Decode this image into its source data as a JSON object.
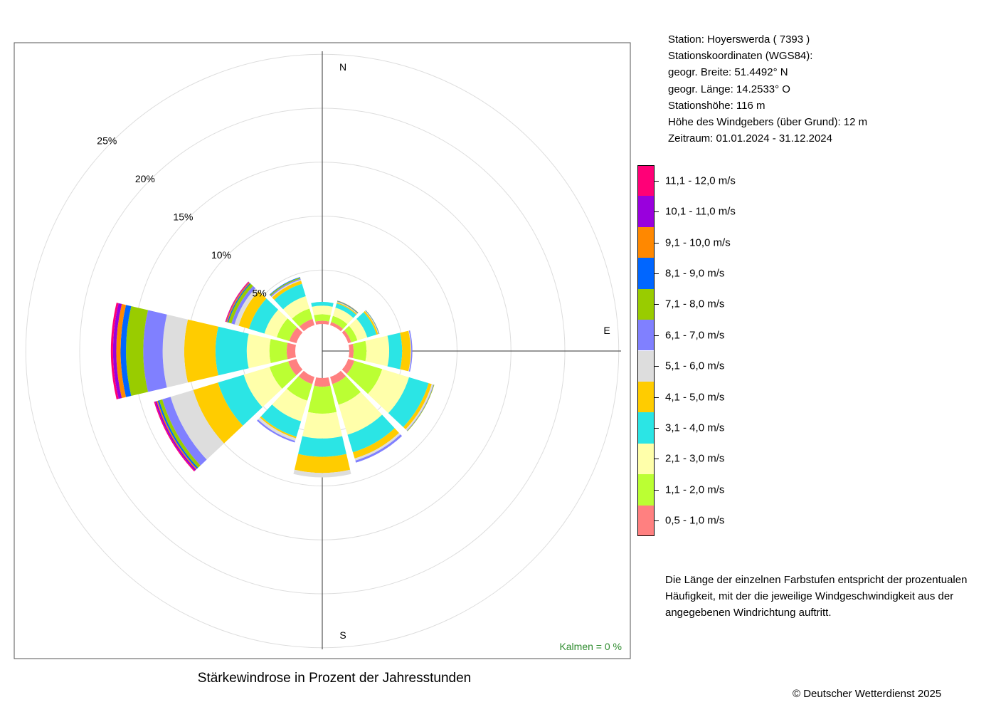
{
  "station": {
    "line": "Station:  Hoyerswerda  ( 7393 )",
    "coords_heading": "Stationskoordinaten (WGS84):",
    "lat": "geogr. Breite: 51.4492° N",
    "lon": "geogr. Länge: 14.2533° O",
    "elevation": "Stationshöhe: 116 m",
    "sensor_height": "Höhe des Windgebers (über Grund): 12 m",
    "period": "Zeitraum: 01.01.2024 - 31.12.2024"
  },
  "note": "Die Länge der einzelnen Farbstufen entspricht der prozentualen Häufigkeit, mit der die jeweilige Windgeschwindigkeit aus der angegebenen Windrichtung auftritt.",
  "caption": "Stärkewindrose in Prozent der Jahresstunden",
  "copyright": "© Deutscher Wetterdienst  2025",
  "calm_text": "Kalmen  =  0 %",
  "compass": {
    "n": "N",
    "e": "E",
    "s": "S"
  },
  "chart_data": {
    "type": "windrose",
    "title": "Stärkewindrose in Prozent der Jahresstunden",
    "unit": "%",
    "directions_deg": [
      0,
      30,
      60,
      90,
      120,
      150,
      180,
      210,
      240,
      270,
      300,
      330
    ],
    "ring_values": [
      5,
      10,
      15,
      20,
      25
    ],
    "ring_labels": [
      "5%",
      "10%",
      "15%",
      "20%",
      "25%"
    ],
    "rlim": [
      0,
      25
    ],
    "calm_percent": 0,
    "legend_position": "right",
    "classes": [
      {
        "label": "0,5 - 1,0 m/s",
        "color": "#FF8080"
      },
      {
        "label": "1,1 - 2,0 m/s",
        "color": "#BBFF33"
      },
      {
        "label": "2,1 - 3,0 m/s",
        "color": "#FFFFAA"
      },
      {
        "label": "3,1 - 4,0 m/s",
        "color": "#2BE5E5"
      },
      {
        "label": "4,1 - 5,0 m/s",
        "color": "#FFCC00"
      },
      {
        "label": "5,1 - 6,0 m/s",
        "color": "#DDDDDD"
      },
      {
        "label": "6,1 - 7,0 m/s",
        "color": "#8080FF"
      },
      {
        "label": "7,1 - 8,0 m/s",
        "color": "#99CC00"
      },
      {
        "label": "8,1 - 9,0 m/s",
        "color": "#0066FF"
      },
      {
        "label": "9,1 - 10,0 m/s",
        "color": "#FF8800"
      },
      {
        "label": "10,1 - 11,0 m/s",
        "color": "#9900DD"
      },
      {
        "label": "11,1 - 12,0 m/s",
        "color": "#FF0077"
      }
    ],
    "series": [
      {
        "direction": 0,
        "values": [
          0.3,
          0.6,
          0.8,
          0.35,
          0,
          0,
          0,
          0,
          0,
          0,
          0,
          0
        ]
      },
      {
        "direction": 30,
        "values": [
          0.3,
          0.6,
          0.8,
          0.4,
          0.1,
          0.05,
          0.03,
          0.05,
          0.03,
          0.02,
          0,
          0
        ]
      },
      {
        "direction": 60,
        "values": [
          0.3,
          0.6,
          0.95,
          0.9,
          0.15,
          0.05,
          0.03,
          0.03,
          0.02,
          0,
          0,
          0
        ]
      },
      {
        "direction": 90,
        "values": [
          0.4,
          1.2,
          2.1,
          1.2,
          0.8,
          0.05,
          0.1,
          0,
          0,
          0,
          0,
          0
        ]
      },
      {
        "direction": 120,
        "values": [
          0.6,
          2.7,
          2.6,
          1.9,
          0.3,
          0.15,
          0.05,
          0.05,
          0,
          0,
          0,
          0
        ]
      },
      {
        "direction": 150,
        "values": [
          0.7,
          2.0,
          2.9,
          1.7,
          0.6,
          0.2,
          0.2,
          0,
          0,
          0,
          0,
          0
        ]
      },
      {
        "direction": 180,
        "values": [
          0.8,
          2.5,
          2.3,
          1.7,
          1.5,
          0.4,
          0,
          0,
          0,
          0,
          0,
          0
        ]
      },
      {
        "direction": 210,
        "values": [
          0.7,
          1.6,
          2.0,
          1.5,
          0.15,
          0.25,
          0.15,
          0,
          0,
          0,
          0,
          0
        ]
      },
      {
        "direction": 240,
        "values": [
          0.8,
          1.8,
          2.5,
          2.5,
          2.4,
          2.2,
          0.8,
          0.3,
          0.15,
          0.1,
          0.15,
          0.1
        ]
      },
      {
        "direction": 270,
        "values": [
          0.8,
          1.6,
          2.1,
          2.9,
          2.9,
          2.0,
          1.8,
          1.6,
          0.5,
          0.4,
          0.3,
          0.2
        ]
      },
      {
        "direction": 300,
        "values": [
          0.7,
          1.2,
          1.2,
          1.5,
          1.0,
          0.4,
          0.3,
          0.3,
          0.1,
          0.1,
          0.05,
          0.05
        ]
      },
      {
        "direction": 330,
        "values": [
          0.6,
          1.0,
          1.2,
          1.2,
          0.3,
          0.1,
          0.1,
          0.1,
          0.05,
          0,
          0,
          0
        ]
      }
    ]
  }
}
